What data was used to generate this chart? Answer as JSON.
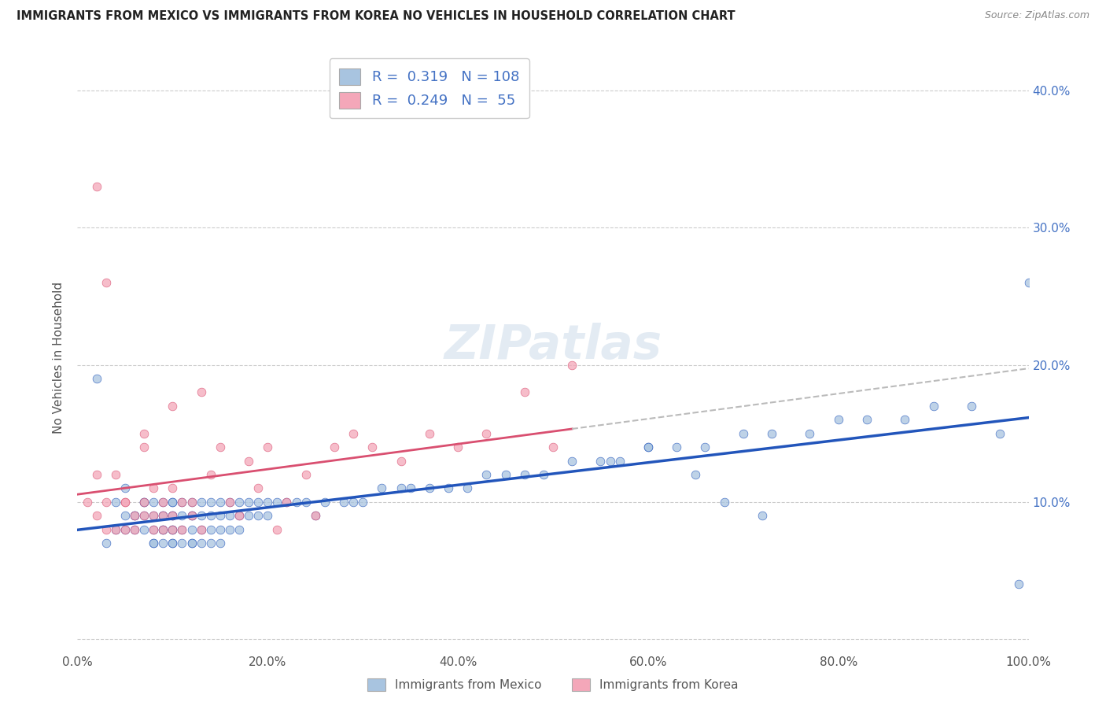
{
  "title": "IMMIGRANTS FROM MEXICO VS IMMIGRANTS FROM KOREA NO VEHICLES IN HOUSEHOLD CORRELATION CHART",
  "source": "Source: ZipAtlas.com",
  "ylabel_label": "No Vehicles in Household",
  "legend_label1": "Immigrants from Mexico",
  "legend_label2": "Immigrants from Korea",
  "R1": 0.319,
  "N1": 108,
  "R2": 0.249,
  "N2": 55,
  "color_mexico": "#a8c4e0",
  "color_korea": "#f4a7b9",
  "line_color_mexico": "#2255bb",
  "line_color_korea": "#d94f70",
  "xlim": [
    0,
    1.0
  ],
  "ylim": [
    -0.01,
    0.42
  ],
  "xticks": [
    0.0,
    0.2,
    0.4,
    0.6,
    0.8,
    1.0
  ],
  "yticks": [
    0.0,
    0.1,
    0.2,
    0.3,
    0.4
  ],
  "ytick_labels": [
    "",
    "10.0%",
    "20.0%",
    "30.0%",
    "40.0%"
  ],
  "xtick_labels": [
    "0.0%",
    "20.0%",
    "40.0%",
    "60.0%",
    "80.0%",
    "100.0%"
  ],
  "watermark": "ZIPatlas",
  "background_color": "#ffffff",
  "mexico_x": [
    0.02,
    0.03,
    0.04,
    0.04,
    0.05,
    0.05,
    0.05,
    0.06,
    0.06,
    0.06,
    0.07,
    0.07,
    0.07,
    0.07,
    0.08,
    0.08,
    0.08,
    0.08,
    0.08,
    0.09,
    0.09,
    0.09,
    0.09,
    0.09,
    0.09,
    0.1,
    0.1,
    0.1,
    0.1,
    0.1,
    0.1,
    0.1,
    0.1,
    0.11,
    0.11,
    0.11,
    0.11,
    0.12,
    0.12,
    0.12,
    0.12,
    0.12,
    0.12,
    0.13,
    0.13,
    0.13,
    0.13,
    0.14,
    0.14,
    0.14,
    0.14,
    0.15,
    0.15,
    0.15,
    0.15,
    0.16,
    0.16,
    0.16,
    0.17,
    0.17,
    0.17,
    0.18,
    0.18,
    0.19,
    0.19,
    0.2,
    0.2,
    0.21,
    0.22,
    0.23,
    0.24,
    0.25,
    0.26,
    0.28,
    0.29,
    0.3,
    0.32,
    0.34,
    0.35,
    0.37,
    0.39,
    0.41,
    0.43,
    0.45,
    0.47,
    0.49,
    0.52,
    0.55,
    0.57,
    0.6,
    0.63,
    0.66,
    0.7,
    0.73,
    0.77,
    0.8,
    0.83,
    0.87,
    0.9,
    0.94,
    0.97,
    0.99,
    1.0,
    0.56,
    0.6,
    0.65,
    0.68,
    0.72
  ],
  "mexico_y": [
    0.19,
    0.07,
    0.08,
    0.1,
    0.08,
    0.09,
    0.11,
    0.09,
    0.09,
    0.08,
    0.08,
    0.09,
    0.1,
    0.1,
    0.07,
    0.07,
    0.08,
    0.09,
    0.1,
    0.07,
    0.08,
    0.08,
    0.09,
    0.09,
    0.1,
    0.07,
    0.07,
    0.08,
    0.08,
    0.09,
    0.09,
    0.1,
    0.1,
    0.07,
    0.08,
    0.09,
    0.1,
    0.07,
    0.07,
    0.08,
    0.09,
    0.09,
    0.1,
    0.07,
    0.08,
    0.09,
    0.1,
    0.07,
    0.08,
    0.09,
    0.1,
    0.07,
    0.08,
    0.09,
    0.1,
    0.08,
    0.09,
    0.1,
    0.08,
    0.09,
    0.1,
    0.09,
    0.1,
    0.09,
    0.1,
    0.09,
    0.1,
    0.1,
    0.1,
    0.1,
    0.1,
    0.09,
    0.1,
    0.1,
    0.1,
    0.1,
    0.11,
    0.11,
    0.11,
    0.11,
    0.11,
    0.11,
    0.12,
    0.12,
    0.12,
    0.12,
    0.13,
    0.13,
    0.13,
    0.14,
    0.14,
    0.14,
    0.15,
    0.15,
    0.15,
    0.16,
    0.16,
    0.16,
    0.17,
    0.17,
    0.15,
    0.04,
    0.26,
    0.13,
    0.14,
    0.12,
    0.1,
    0.09
  ],
  "korea_x": [
    0.01,
    0.02,
    0.02,
    0.03,
    0.03,
    0.04,
    0.04,
    0.05,
    0.05,
    0.05,
    0.06,
    0.06,
    0.07,
    0.07,
    0.07,
    0.07,
    0.08,
    0.08,
    0.08,
    0.09,
    0.09,
    0.09,
    0.1,
    0.1,
    0.1,
    0.1,
    0.11,
    0.11,
    0.12,
    0.12,
    0.13,
    0.13,
    0.14,
    0.15,
    0.16,
    0.17,
    0.18,
    0.19,
    0.2,
    0.21,
    0.22,
    0.24,
    0.25,
    0.27,
    0.29,
    0.31,
    0.34,
    0.37,
    0.4,
    0.43,
    0.47,
    0.5,
    0.52,
    0.02,
    0.03
  ],
  "korea_y": [
    0.1,
    0.12,
    0.09,
    0.08,
    0.1,
    0.08,
    0.12,
    0.08,
    0.1,
    0.1,
    0.09,
    0.08,
    0.09,
    0.1,
    0.14,
    0.15,
    0.08,
    0.09,
    0.11,
    0.08,
    0.09,
    0.1,
    0.11,
    0.08,
    0.09,
    0.17,
    0.08,
    0.1,
    0.09,
    0.1,
    0.08,
    0.18,
    0.12,
    0.14,
    0.1,
    0.09,
    0.13,
    0.11,
    0.14,
    0.08,
    0.1,
    0.12,
    0.09,
    0.14,
    0.15,
    0.14,
    0.13,
    0.15,
    0.14,
    0.15,
    0.18,
    0.14,
    0.2,
    0.33,
    0.26
  ]
}
